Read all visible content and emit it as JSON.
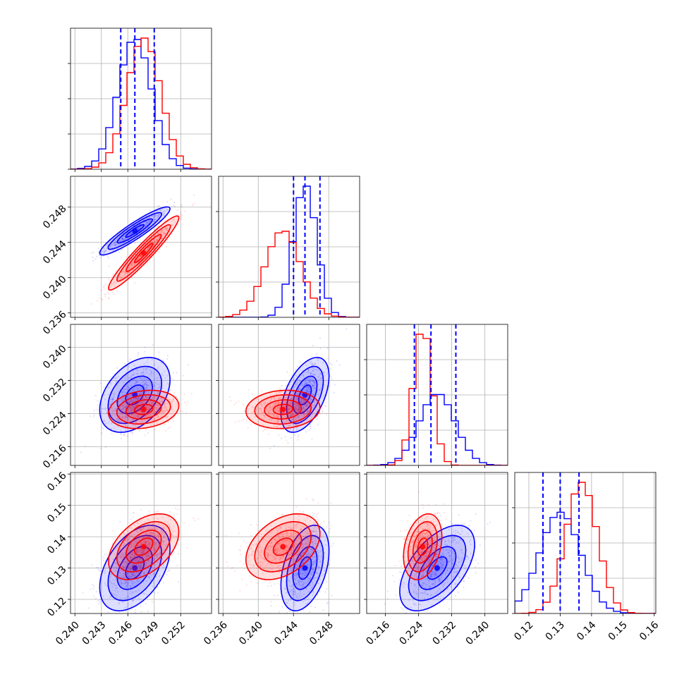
{
  "chart_data": {
    "type": "corner",
    "title": "",
    "colors": {
      "series_a": "#0000ff",
      "series_b": "#ff0000",
      "grid": "#b0b0b0",
      "axes": "#000000"
    },
    "parameters": [
      {
        "range": [
          0.2395,
          0.2555
        ],
        "ticks": [
          0.24,
          0.243,
          0.246,
          0.249,
          0.252
        ],
        "tick_labels": [
          "0.240",
          "0.243",
          "0.246",
          "0.249",
          "0.252"
        ]
      },
      {
        "range": [
          0.2355,
          0.2515
        ],
        "ticks": [
          0.236,
          0.24,
          0.244,
          0.248
        ],
        "tick_labels": [
          "0.236",
          "0.240",
          "0.244",
          "0.248"
        ]
      },
      {
        "range": [
          0.2115,
          0.2455
        ],
        "ticks": [
          0.216,
          0.224,
          0.232,
          0.24
        ],
        "tick_labels": [
          "0.216",
          "0.224",
          "0.232",
          "0.240"
        ]
      },
      {
        "range": [
          0.1155,
          0.1605
        ],
        "ticks": [
          0.12,
          0.13,
          0.14,
          0.15,
          0.16
        ],
        "tick_labels": [
          "0.12",
          "0.13",
          "0.14",
          "0.15",
          "0.16"
        ]
      }
    ],
    "series": [
      {
        "color": "#0000ff",
        "means": [
          0.2468,
          0.2453,
          0.2285,
          0.13
        ],
        "stds": [
          0.0019,
          0.0013,
          0.0043,
          0.0065
        ],
        "correlations": [
          [
            1,
            0.92,
            0.4,
            0.45
          ],
          [
            0.92,
            1,
            0.5,
            0.4
          ],
          [
            0.4,
            0.5,
            1,
            0.55
          ],
          [
            0.45,
            0.4,
            0.55,
            1
          ]
        ]
      },
      {
        "color": "#ff0000",
        "means": [
          0.2478,
          0.2428,
          0.225,
          0.1368
        ],
        "stds": [
          0.0019,
          0.002,
          0.0022,
          0.005
        ],
        "correlations": [
          [
            1,
            0.95,
            0.2,
            0.45
          ],
          [
            0.95,
            1,
            0.1,
            0.4
          ],
          [
            0.2,
            0.1,
            1,
            0.3
          ],
          [
            0.45,
            0.4,
            0.3,
            1
          ]
        ]
      }
    ],
    "quantile_lines": [
      [
        0.2452,
        0.2468,
        0.249
      ],
      [
        0.244,
        0.2453,
        0.247
      ],
      [
        0.223,
        0.227,
        0.233
      ],
      [
        0.1245,
        0.13,
        0.136
      ]
    ],
    "grid": true,
    "legend": "none"
  }
}
